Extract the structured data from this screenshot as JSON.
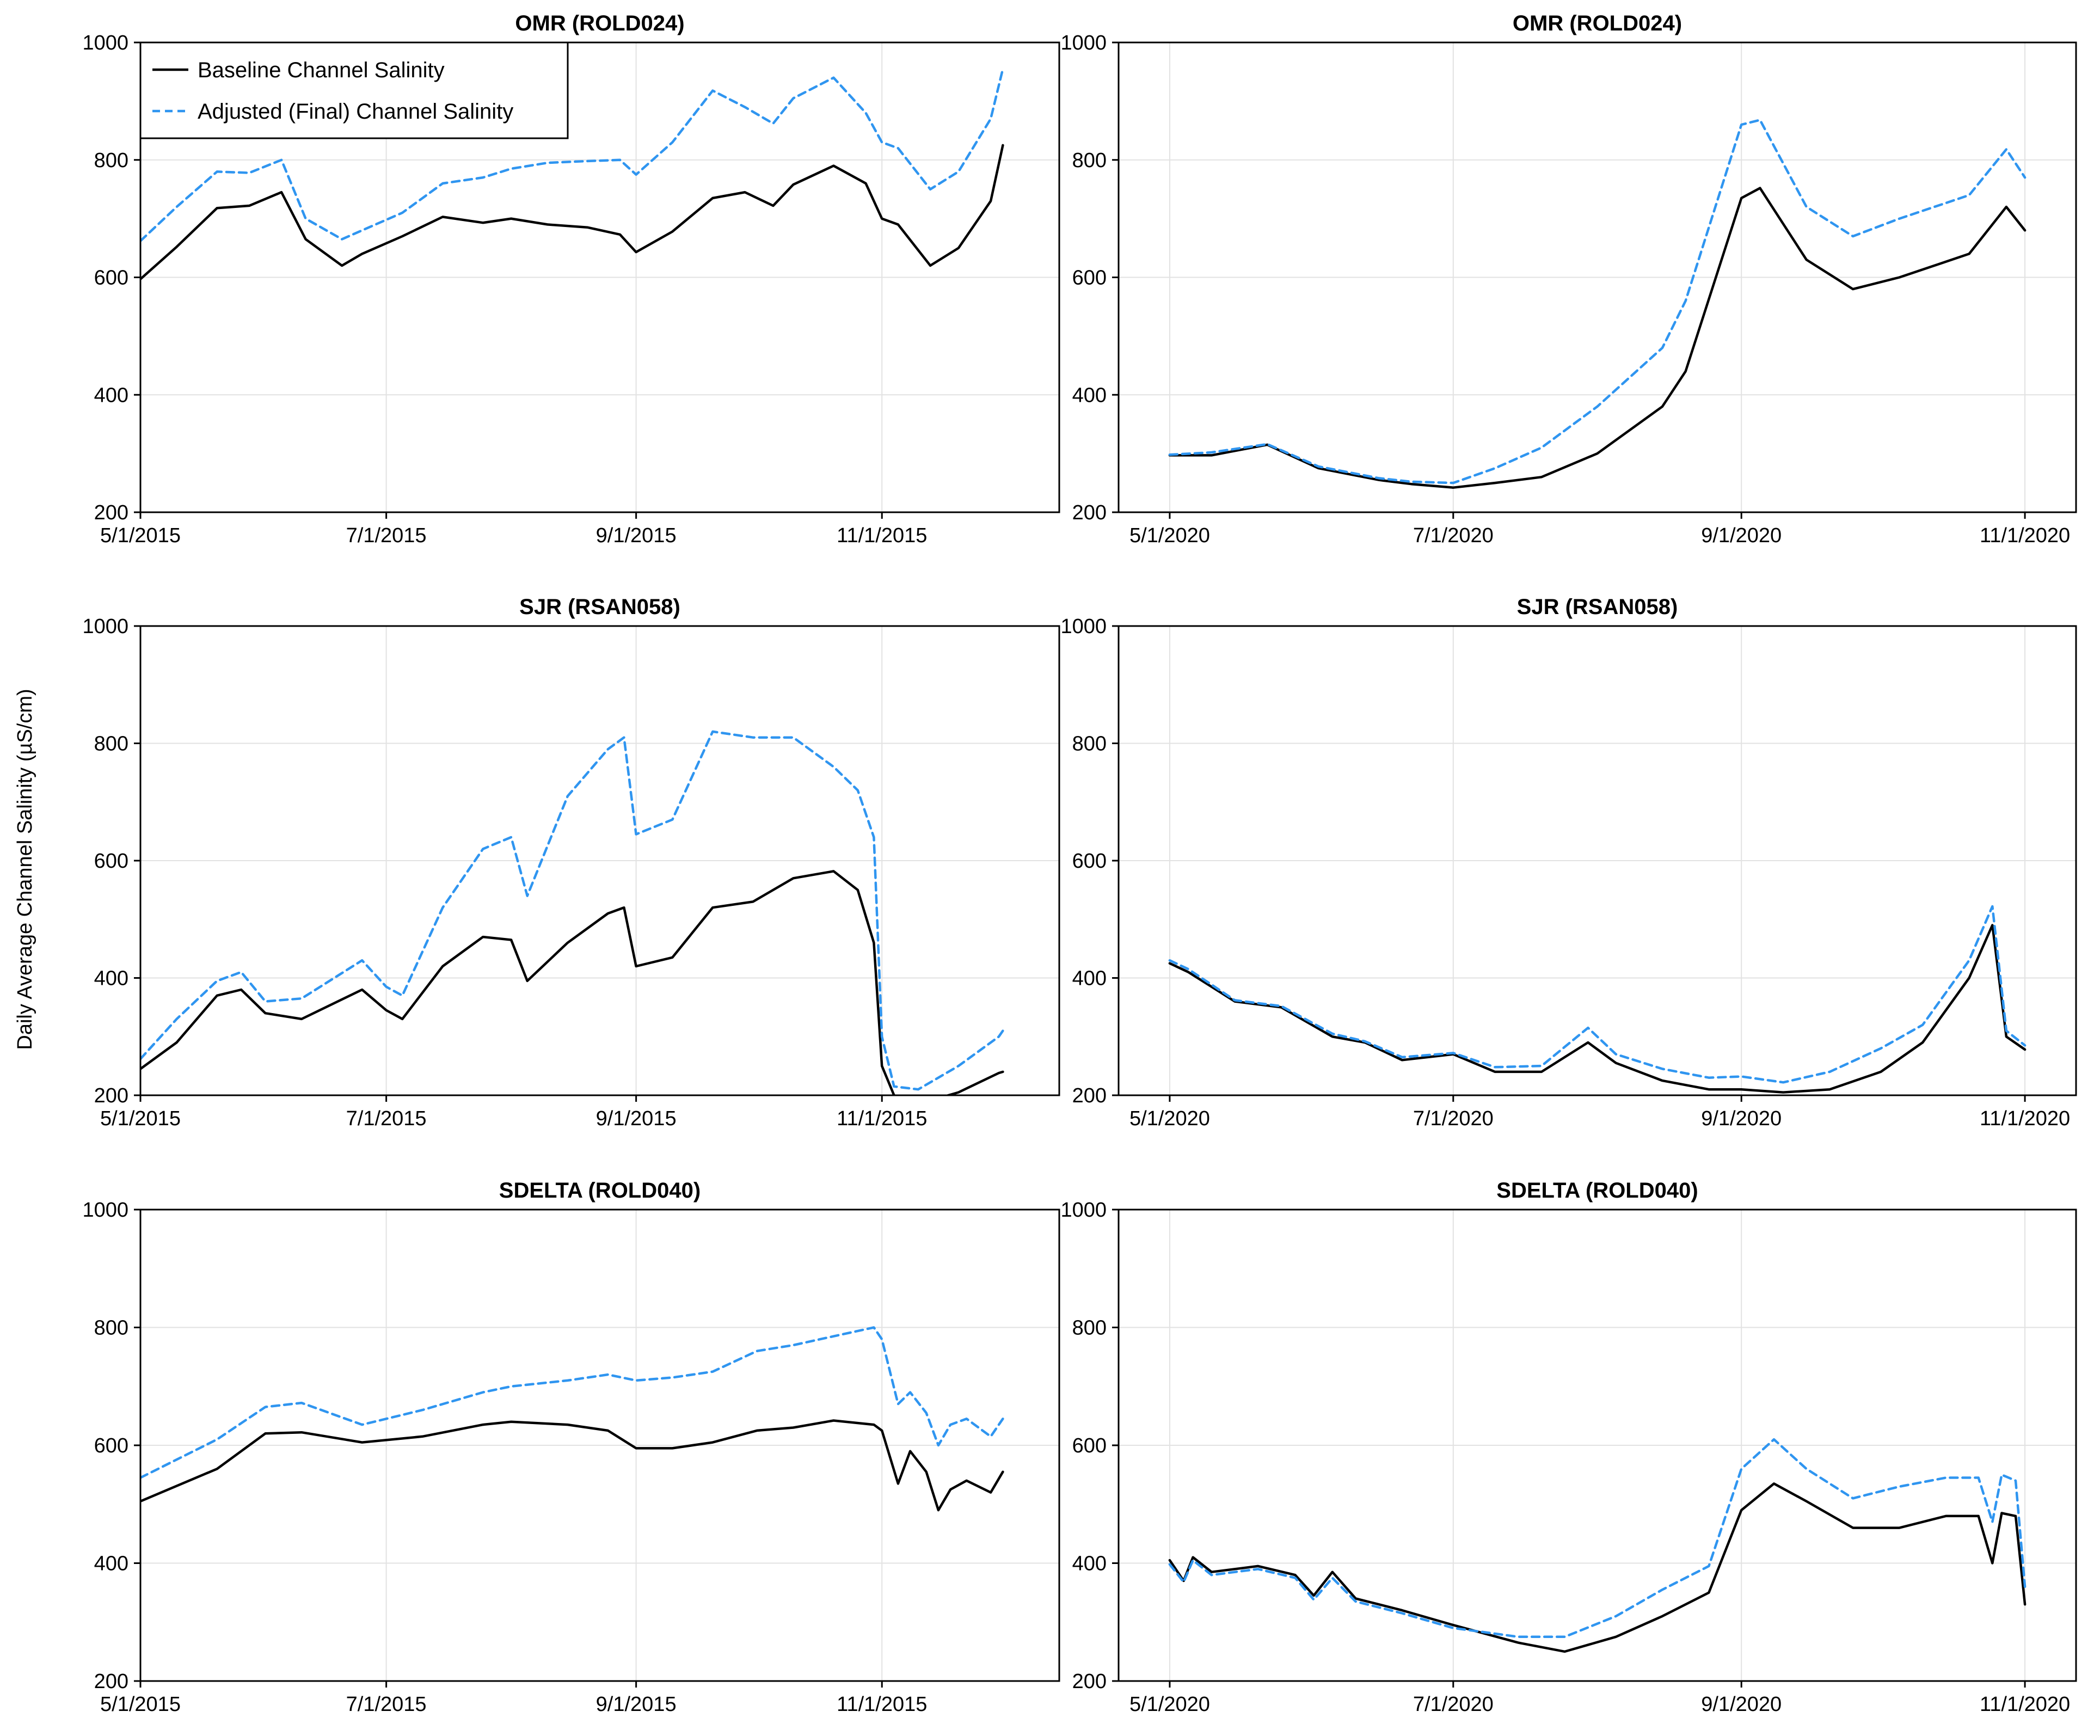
{
  "figure": {
    "ylabel": "Daily Average Channel Salinity (µS/cm)"
  },
  "colors": {
    "baseline": "#000000",
    "adjusted": "#2f95f0",
    "grid": "#e2e2e2"
  },
  "legend": {
    "entries": [
      "Baseline Channel Salinity",
      "Adjusted (Final) Channel Salinity"
    ],
    "placement": "top-left",
    "panel": 0
  },
  "chart_data": [
    {
      "type": "line",
      "title": "OMR (ROLD024)",
      "xlabel": "",
      "ylabel": "",
      "ylim": [
        200,
        1000
      ],
      "yticks": [
        200,
        400,
        600,
        800,
        1000
      ],
      "xlim": [
        "2015-05-01",
        "2015-12-15"
      ],
      "xticks": [
        "2015-05-01",
        "2015-07-01",
        "2015-09-01",
        "2015-11-01"
      ],
      "xtick_labels": [
        "5/1/2015",
        "7/1/2015",
        "9/1/2015",
        "11/1/2015"
      ],
      "grid": true,
      "series": [
        {
          "name": "Baseline Channel Salinity",
          "style": "solid",
          "x": [
            "2015-05-01",
            "2015-05-10",
            "2015-05-20",
            "2015-05-28",
            "2015-06-05",
            "2015-06-11",
            "2015-06-20",
            "2015-06-25",
            "2015-07-05",
            "2015-07-15",
            "2015-07-25",
            "2015-08-01",
            "2015-08-10",
            "2015-08-20",
            "2015-08-28",
            "2015-09-01",
            "2015-09-10",
            "2015-09-20",
            "2015-09-28",
            "2015-10-05",
            "2015-10-10",
            "2015-10-20",
            "2015-10-28",
            "2015-11-01",
            "2015-11-05",
            "2015-11-13",
            "2015-11-20",
            "2015-11-28",
            "2015-12-01"
          ],
          "values": [
            597,
            652,
            718,
            722,
            745,
            665,
            620,
            640,
            670,
            703,
            693,
            700,
            690,
            685,
            673,
            643,
            678,
            735,
            745,
            722,
            758,
            790,
            760,
            700,
            690,
            620,
            650,
            730,
            825
          ]
        },
        {
          "name": "Adjusted (Final) Channel Salinity",
          "style": "dashed",
          "x": [
            "2015-05-01",
            "2015-05-10",
            "2015-05-20",
            "2015-05-28",
            "2015-06-05",
            "2015-06-11",
            "2015-06-20",
            "2015-06-25",
            "2015-07-05",
            "2015-07-15",
            "2015-07-25",
            "2015-08-01",
            "2015-08-10",
            "2015-08-20",
            "2015-08-28",
            "2015-09-01",
            "2015-09-10",
            "2015-09-20",
            "2015-09-28",
            "2015-10-05",
            "2015-10-10",
            "2015-10-20",
            "2015-10-28",
            "2015-11-01",
            "2015-11-05",
            "2015-11-13",
            "2015-11-20",
            "2015-11-28",
            "2015-12-01"
          ],
          "values": [
            662,
            720,
            780,
            778,
            800,
            700,
            665,
            680,
            710,
            760,
            770,
            785,
            795,
            798,
            800,
            775,
            830,
            918,
            890,
            862,
            905,
            940,
            880,
            830,
            820,
            750,
            780,
            870,
            955
          ]
        }
      ]
    },
    {
      "type": "line",
      "title": "OMR (ROLD024)",
      "xlabel": "",
      "ylabel": "",
      "ylim": [
        200,
        1000
      ],
      "yticks": [
        200,
        400,
        600,
        800,
        1000
      ],
      "xlim": [
        "2020-04-20",
        "2020-11-12"
      ],
      "xticks": [
        "2020-05-01",
        "2020-07-01",
        "2020-09-01",
        "2020-11-01"
      ],
      "xtick_labels": [
        "5/1/2020",
        "7/1/2020",
        "9/1/2020",
        "11/1/2020"
      ],
      "grid": true,
      "series": [
        {
          "name": "Baseline Channel Salinity",
          "style": "solid",
          "x": [
            "2020-05-01",
            "2020-05-10",
            "2020-05-22",
            "2020-06-02",
            "2020-06-15",
            "2020-06-22",
            "2020-07-01",
            "2020-07-10",
            "2020-07-20",
            "2020-08-01",
            "2020-08-15",
            "2020-08-20",
            "2020-09-01",
            "2020-09-05",
            "2020-09-15",
            "2020-09-25",
            "2020-10-05",
            "2020-10-20",
            "2020-10-28",
            "2020-11-01"
          ],
          "values": [
            297,
            297,
            315,
            275,
            255,
            248,
            242,
            250,
            260,
            300,
            380,
            440,
            735,
            752,
            630,
            580,
            600,
            640,
            720,
            680
          ]
        },
        {
          "name": "Adjusted (Final) Channel Salinity",
          "style": "dashed",
          "x": [
            "2020-05-01",
            "2020-05-10",
            "2020-05-22",
            "2020-06-02",
            "2020-06-15",
            "2020-06-22",
            "2020-07-01",
            "2020-07-10",
            "2020-07-20",
            "2020-08-01",
            "2020-08-15",
            "2020-08-20",
            "2020-09-01",
            "2020-09-05",
            "2020-09-15",
            "2020-09-25",
            "2020-10-05",
            "2020-10-20",
            "2020-10-28",
            "2020-11-01"
          ],
          "values": [
            298,
            302,
            316,
            278,
            258,
            252,
            250,
            275,
            310,
            380,
            480,
            560,
            860,
            868,
            720,
            670,
            700,
            740,
            818,
            770
          ]
        }
      ]
    },
    {
      "type": "line",
      "title": "SJR (RSAN058)",
      "xlabel": "",
      "ylabel": "",
      "ylim": [
        200,
        1000
      ],
      "yticks": [
        200,
        400,
        600,
        800,
        1000
      ],
      "xlim": [
        "2015-05-01",
        "2015-12-15"
      ],
      "xticks": [
        "2015-05-01",
        "2015-07-01",
        "2015-09-01",
        "2015-11-01"
      ],
      "xtick_labels": [
        "5/1/2015",
        "7/1/2015",
        "9/1/2015",
        "11/1/2015"
      ],
      "grid": true,
      "series": [
        {
          "name": "Baseline Channel Salinity",
          "style": "solid",
          "x": [
            "2015-05-01",
            "2015-05-10",
            "2015-05-20",
            "2015-05-26",
            "2015-06-01",
            "2015-06-10",
            "2015-06-25",
            "2015-07-01",
            "2015-07-05",
            "2015-07-15",
            "2015-07-25",
            "2015-08-01",
            "2015-08-05",
            "2015-08-15",
            "2015-08-25",
            "2015-08-29",
            "2015-09-01",
            "2015-09-10",
            "2015-09-20",
            "2015-09-30",
            "2015-10-10",
            "2015-10-20",
            "2015-10-26",
            "2015-10-30",
            "2015-11-01",
            "2015-11-04",
            "2015-11-10",
            "2015-11-20",
            "2015-11-30",
            "2015-12-01"
          ],
          "values": [
            245,
            290,
            370,
            380,
            340,
            330,
            380,
            345,
            330,
            420,
            470,
            465,
            395,
            460,
            510,
            520,
            420,
            435,
            520,
            530,
            570,
            582,
            550,
            460,
            250,
            200,
            185,
            205,
            238,
            240
          ]
        },
        {
          "name": "Adjusted (Final) Channel Salinity",
          "style": "dashed",
          "x": [
            "2015-05-01",
            "2015-05-10",
            "2015-05-20",
            "2015-05-26",
            "2015-06-01",
            "2015-06-10",
            "2015-06-25",
            "2015-07-01",
            "2015-07-05",
            "2015-07-15",
            "2015-07-25",
            "2015-08-01",
            "2015-08-05",
            "2015-08-15",
            "2015-08-25",
            "2015-08-29",
            "2015-09-01",
            "2015-09-10",
            "2015-09-20",
            "2015-09-30",
            "2015-10-10",
            "2015-10-20",
            "2015-10-26",
            "2015-10-30",
            "2015-11-01",
            "2015-11-04",
            "2015-11-10",
            "2015-11-20",
            "2015-11-30",
            "2015-12-01"
          ],
          "values": [
            262,
            330,
            395,
            410,
            360,
            365,
            430,
            385,
            370,
            520,
            620,
            640,
            540,
            710,
            790,
            810,
            645,
            670,
            820,
            810,
            810,
            760,
            720,
            640,
            300,
            215,
            210,
            250,
            300,
            310
          ]
        }
      ]
    },
    {
      "type": "line",
      "title": "SJR (RSAN058)",
      "xlabel": "",
      "ylabel": "",
      "ylim": [
        200,
        1000
      ],
      "yticks": [
        200,
        400,
        600,
        800,
        1000
      ],
      "xlim": [
        "2020-04-20",
        "2020-11-12"
      ],
      "xticks": [
        "2020-05-01",
        "2020-07-01",
        "2020-09-01",
        "2020-11-01"
      ],
      "xtick_labels": [
        "5/1/2020",
        "7/1/2020",
        "9/1/2020",
        "11/1/2020"
      ],
      "grid": true,
      "series": [
        {
          "name": "Baseline Channel Salinity",
          "style": "solid",
          "x": [
            "2020-05-01",
            "2020-05-05",
            "2020-05-15",
            "2020-05-25",
            "2020-06-05",
            "2020-06-12",
            "2020-06-20",
            "2020-07-01",
            "2020-07-10",
            "2020-07-20",
            "2020-07-30",
            "2020-08-05",
            "2020-08-15",
            "2020-08-25",
            "2020-09-01",
            "2020-09-10",
            "2020-09-20",
            "2020-10-01",
            "2020-10-10",
            "2020-10-20",
            "2020-10-25",
            "2020-10-28",
            "2020-11-01"
          ],
          "values": [
            425,
            410,
            360,
            350,
            300,
            290,
            260,
            270,
            240,
            240,
            290,
            255,
            225,
            210,
            210,
            205,
            210,
            240,
            290,
            400,
            490,
            300,
            278
          ]
        },
        {
          "name": "Adjusted (Final) Channel Salinity",
          "style": "dashed",
          "x": [
            "2020-05-01",
            "2020-05-05",
            "2020-05-15",
            "2020-05-25",
            "2020-06-05",
            "2020-06-12",
            "2020-06-20",
            "2020-07-01",
            "2020-07-10",
            "2020-07-20",
            "2020-07-30",
            "2020-08-05",
            "2020-08-15",
            "2020-08-25",
            "2020-09-01",
            "2020-09-10",
            "2020-09-20",
            "2020-10-01",
            "2020-10-10",
            "2020-10-20",
            "2020-10-25",
            "2020-10-28",
            "2020-11-01"
          ],
          "values": [
            430,
            415,
            362,
            352,
            305,
            292,
            265,
            272,
            248,
            250,
            315,
            270,
            245,
            230,
            232,
            222,
            240,
            280,
            320,
            430,
            522,
            310,
            285
          ]
        }
      ]
    },
    {
      "type": "line",
      "title": "SDELTA (ROLD040)",
      "xlabel": "",
      "ylabel": "",
      "ylim": [
        200,
        1000
      ],
      "yticks": [
        200,
        400,
        600,
        800,
        1000
      ],
      "xlim": [
        "2015-05-01",
        "2015-12-15"
      ],
      "xticks": [
        "2015-05-01",
        "2015-07-01",
        "2015-09-01",
        "2015-11-01"
      ],
      "xtick_labels": [
        "5/1/2015",
        "7/1/2015",
        "9/1/2015",
        "11/1/2015"
      ],
      "grid": true,
      "series": [
        {
          "name": "Baseline Channel Salinity",
          "style": "solid",
          "x": [
            "2015-05-01",
            "2015-05-20",
            "2015-06-01",
            "2015-06-10",
            "2015-06-25",
            "2015-07-10",
            "2015-07-25",
            "2015-08-01",
            "2015-08-15",
            "2015-08-25",
            "2015-09-01",
            "2015-09-10",
            "2015-09-20",
            "2015-10-01",
            "2015-10-10",
            "2015-10-20",
            "2015-10-30",
            "2015-11-01",
            "2015-11-05",
            "2015-11-08",
            "2015-11-12",
            "2015-11-15",
            "2015-11-18",
            "2015-11-22",
            "2015-11-28",
            "2015-12-01"
          ],
          "values": [
            505,
            560,
            620,
            622,
            605,
            615,
            635,
            640,
            635,
            625,
            595,
            595,
            605,
            625,
            630,
            642,
            635,
            625,
            535,
            590,
            555,
            490,
            525,
            540,
            520,
            555
          ]
        },
        {
          "name": "Adjusted (Final) Channel Salinity",
          "style": "dashed",
          "x": [
            "2015-05-01",
            "2015-05-20",
            "2015-06-01",
            "2015-06-10",
            "2015-06-25",
            "2015-07-10",
            "2015-07-25",
            "2015-08-01",
            "2015-08-15",
            "2015-08-25",
            "2015-09-01",
            "2015-09-10",
            "2015-09-20",
            "2015-10-01",
            "2015-10-10",
            "2015-10-20",
            "2015-10-30",
            "2015-11-01",
            "2015-11-05",
            "2015-11-08",
            "2015-11-12",
            "2015-11-15",
            "2015-11-18",
            "2015-11-22",
            "2015-11-28",
            "2015-12-01"
          ],
          "values": [
            545,
            610,
            665,
            672,
            635,
            660,
            690,
            700,
            710,
            720,
            710,
            715,
            725,
            760,
            770,
            785,
            800,
            780,
            670,
            690,
            655,
            600,
            635,
            645,
            615,
            645
          ]
        }
      ]
    },
    {
      "type": "line",
      "title": "SDELTA (ROLD040)",
      "xlabel": "",
      "ylabel": "",
      "ylim": [
        200,
        1000
      ],
      "yticks": [
        200,
        400,
        600,
        800,
        1000
      ],
      "xlim": [
        "2020-04-20",
        "2020-11-12"
      ],
      "xticks": [
        "2020-05-01",
        "2020-07-01",
        "2020-09-01",
        "2020-11-01"
      ],
      "xtick_labels": [
        "5/1/2020",
        "7/1/2020",
        "9/1/2020",
        "11/1/2020"
      ],
      "grid": true,
      "series": [
        {
          "name": "Baseline Channel Salinity",
          "style": "solid",
          "x": [
            "2020-05-01",
            "2020-05-04",
            "2020-05-06",
            "2020-05-10",
            "2020-05-20",
            "2020-05-28",
            "2020-06-01",
            "2020-06-05",
            "2020-06-10",
            "2020-06-20",
            "2020-07-01",
            "2020-07-15",
            "2020-07-25",
            "2020-08-05",
            "2020-08-15",
            "2020-08-25",
            "2020-09-01",
            "2020-09-08",
            "2020-09-15",
            "2020-09-25",
            "2020-10-05",
            "2020-10-15",
            "2020-10-22",
            "2020-10-25",
            "2020-10-27",
            "2020-10-30",
            "2020-11-01"
          ],
          "values": [
            405,
            370,
            410,
            385,
            395,
            380,
            345,
            385,
            340,
            320,
            295,
            265,
            250,
            275,
            310,
            350,
            490,
            535,
            505,
            460,
            460,
            480,
            480,
            400,
            485,
            480,
            330
          ]
        },
        {
          "name": "Adjusted (Final) Channel Salinity",
          "style": "dashed",
          "x": [
            "2020-05-01",
            "2020-05-04",
            "2020-05-06",
            "2020-05-10",
            "2020-05-20",
            "2020-05-28",
            "2020-06-01",
            "2020-06-05",
            "2020-06-10",
            "2020-06-20",
            "2020-07-01",
            "2020-07-15",
            "2020-07-25",
            "2020-08-05",
            "2020-08-15",
            "2020-08-25",
            "2020-09-01",
            "2020-09-08",
            "2020-09-15",
            "2020-09-25",
            "2020-10-05",
            "2020-10-15",
            "2020-10-22",
            "2020-10-25",
            "2020-10-27",
            "2020-10-30",
            "2020-11-01"
          ],
          "values": [
            398,
            368,
            405,
            380,
            390,
            375,
            338,
            375,
            335,
            315,
            290,
            275,
            275,
            310,
            355,
            395,
            560,
            610,
            560,
            510,
            530,
            545,
            545,
            470,
            550,
            540,
            360
          ]
        }
      ]
    }
  ]
}
